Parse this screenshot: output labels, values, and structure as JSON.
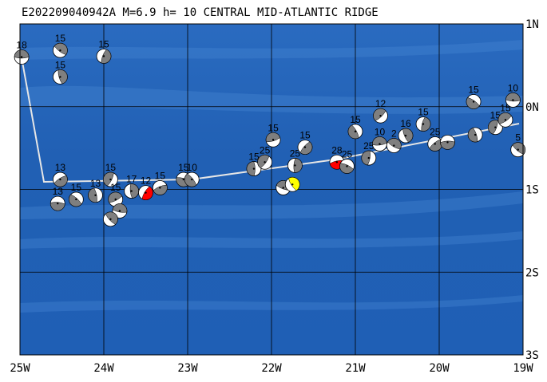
{
  "chart_data": {
    "type": "map",
    "title": "E202209040942A M=6.9 h= 10 CENTRAL MID-ATLANTIC RIDGE",
    "xlim": [
      -25,
      -19
    ],
    "ylim": [
      -3,
      1
    ],
    "xticks": [
      {
        "value": -25,
        "label": "25W"
      },
      {
        "value": -24,
        "label": "24W"
      },
      {
        "value": -23,
        "label": "23W"
      },
      {
        "value": -22,
        "label": "22W"
      },
      {
        "value": -21,
        "label": "21W"
      },
      {
        "value": -20,
        "label": "20W"
      },
      {
        "value": -19,
        "label": "19W"
      }
    ],
    "yticks": [
      {
        "value": 1,
        "label": "1N"
      },
      {
        "value": 0,
        "label": "0N"
      },
      {
        "value": -1,
        "label": "1S"
      },
      {
        "value": -2,
        "label": "2S"
      },
      {
        "value": -3,
        "label": "3S"
      }
    ],
    "grid": true,
    "color": "#7f7f7f",
    "events": [
      {
        "lon": -24.98,
        "lat": 0.6,
        "depth": 18
      },
      {
        "lon": -24.52,
        "lat": 0.68,
        "depth": 15
      },
      {
        "lon": -24.52,
        "lat": 0.36,
        "depth": 15
      },
      {
        "lon": -24.0,
        "lat": 0.61,
        "depth": 15
      },
      {
        "lon": -24.52,
        "lat": -0.88,
        "depth": 13
      },
      {
        "lon": -24.55,
        "lat": -1.17,
        "depth": 13
      },
      {
        "lon": -24.33,
        "lat": -1.12,
        "depth": 15
      },
      {
        "lon": -24.1,
        "lat": -1.07,
        "depth": 13
      },
      {
        "lon": -23.92,
        "lat": -0.88,
        "depth": 15
      },
      {
        "lon": -23.86,
        "lat": -1.12,
        "depth": 15
      },
      {
        "lon": -23.81,
        "lat": -1.26,
        "depth": null
      },
      {
        "lon": -23.92,
        "lat": -1.36,
        "depth": null
      },
      {
        "lon": -23.67,
        "lat": -1.02,
        "depth": 17
      },
      {
        "lon": -23.5,
        "lat": -1.04,
        "depth": 12,
        "color": "#ff0000"
      },
      {
        "lon": -23.33,
        "lat": -0.98,
        "depth": 15
      },
      {
        "lon": -23.05,
        "lat": -0.88,
        "depth": 15
      },
      {
        "lon": -22.95,
        "lat": -0.88,
        "depth": 10
      },
      {
        "lon": -22.21,
        "lat": -0.75,
        "depth": 15
      },
      {
        "lon": -22.08,
        "lat": -0.67,
        "depth": 25
      },
      {
        "lon": -21.98,
        "lat": -0.4,
        "depth": 15
      },
      {
        "lon": -21.86,
        "lat": -0.98,
        "depth": null
      },
      {
        "lon": -21.75,
        "lat": -0.94,
        "depth": null,
        "color": "#ffff00"
      },
      {
        "lon": -21.72,
        "lat": -0.71,
        "depth": 25
      },
      {
        "lon": -21.6,
        "lat": -0.49,
        "depth": 15
      },
      {
        "lon": -21.22,
        "lat": -0.67,
        "depth": 28,
        "color": "#ff0000"
      },
      {
        "lon": -21.1,
        "lat": -0.72,
        "depth": 25
      },
      {
        "lon": -21.0,
        "lat": -0.3,
        "depth": 15
      },
      {
        "lon": -20.84,
        "lat": -0.62,
        "depth": 25
      },
      {
        "lon": -20.7,
        "lat": -0.11,
        "depth": 12
      },
      {
        "lon": -20.71,
        "lat": -0.45,
        "depth": 10
      },
      {
        "lon": -20.54,
        "lat": -0.47,
        "depth": 2
      },
      {
        "lon": -20.4,
        "lat": -0.35,
        "depth": 16
      },
      {
        "lon": -20.19,
        "lat": -0.21,
        "depth": 15
      },
      {
        "lon": -20.05,
        "lat": -0.45,
        "depth": 25
      },
      {
        "lon": -19.9,
        "lat": -0.43,
        "depth": null
      },
      {
        "lon": -19.59,
        "lat": 0.06,
        "depth": 15
      },
      {
        "lon": -19.57,
        "lat": -0.34,
        "depth": null
      },
      {
        "lon": -19.33,
        "lat": -0.25,
        "depth": 15
      },
      {
        "lon": -19.21,
        "lat": -0.16,
        "depth": 15
      },
      {
        "lon": -19.12,
        "lat": 0.08,
        "depth": 10
      },
      {
        "lon": -19.06,
        "lat": -0.52,
        "depth": 5
      }
    ]
  }
}
